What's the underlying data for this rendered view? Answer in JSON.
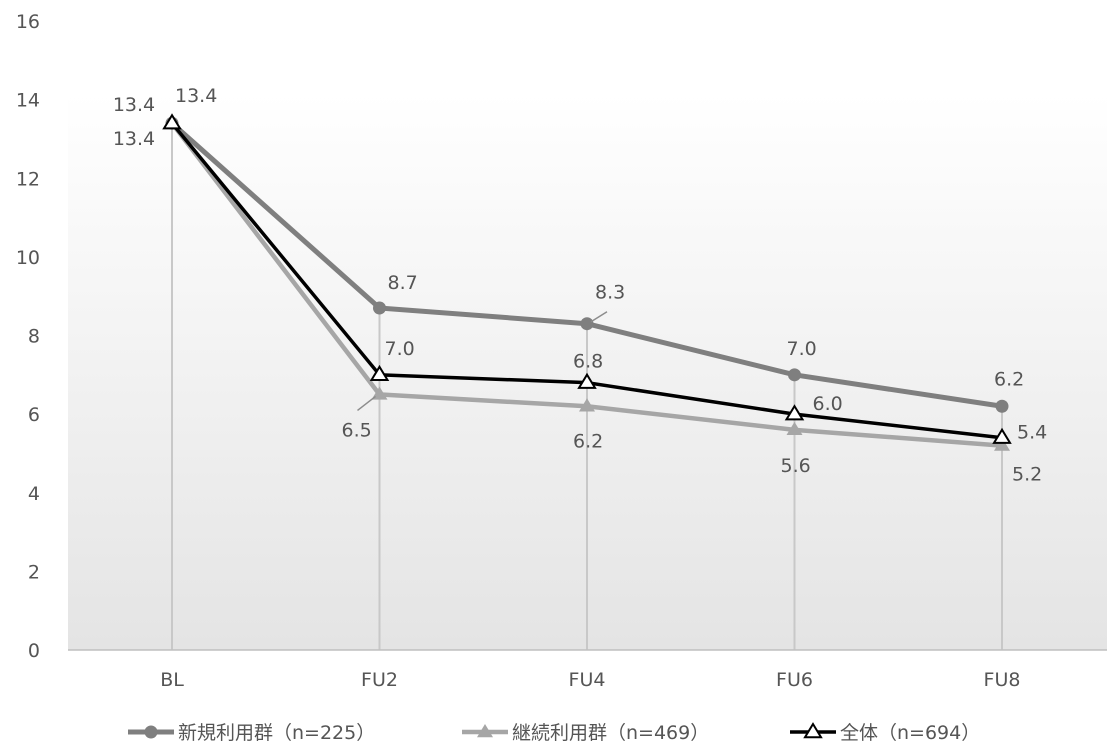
{
  "chart_data": {
    "type": "line",
    "categories": [
      "BL",
      "FU2",
      "FU4",
      "FU6",
      "FU8"
    ],
    "ylim": [
      0,
      16
    ],
    "yticks": [
      0,
      2,
      4,
      6,
      8,
      10,
      12,
      14,
      16
    ],
    "grid": false,
    "drop_lines": true,
    "legend_position": "bottom",
    "series": [
      {
        "name": "新規利用群（n=225）",
        "values": [
          13.4,
          8.7,
          8.3,
          7.0,
          6.2
        ],
        "labels": [
          "13.4",
          "8.7",
          "8.3",
          "7.0",
          "6.2"
        ],
        "color": "#7f7f7f",
        "marker": "circle"
      },
      {
        "name": "継続利用群（n=469）",
        "values": [
          13.4,
          6.5,
          6.2,
          5.6,
          5.2
        ],
        "labels": [
          "13.4",
          "6.5",
          "6.2",
          "5.6",
          "5.2"
        ],
        "color": "#a6a6a6",
        "marker": "triangle"
      },
      {
        "name": "全体（n=694）",
        "values": [
          13.4,
          7.0,
          6.8,
          6.0,
          5.4
        ],
        "labels": [
          "13.4",
          "7.0",
          "6.8",
          "6.0",
          "5.4"
        ],
        "color": "#000000",
        "marker": "open-triangle"
      }
    ]
  }
}
